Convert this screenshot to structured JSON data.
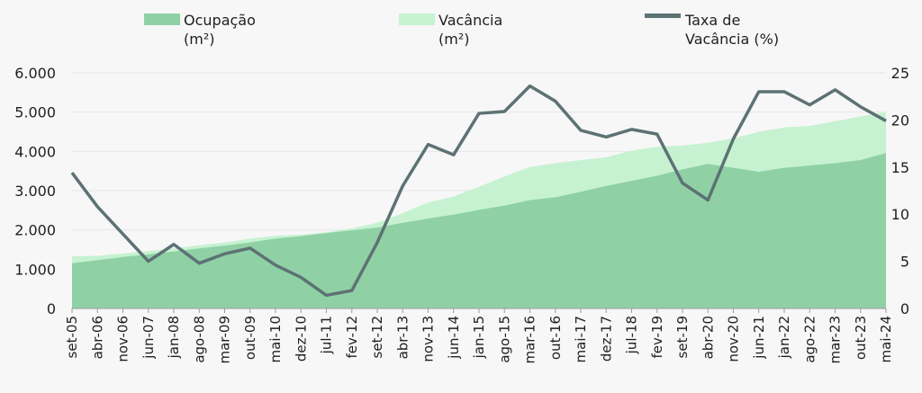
{
  "chart_data": {
    "type": "area",
    "categories": [
      "set-05",
      "abr-06",
      "nov-06",
      "jun-07",
      "jan-08",
      "ago-08",
      "mar-09",
      "out-09",
      "mai-10",
      "dez-10",
      "jul-11",
      "fev-12",
      "set-12",
      "abr-13",
      "nov-13",
      "jun-14",
      "jan-15",
      "ago-15",
      "mar-16",
      "out-16",
      "mai-17",
      "dez-17",
      "jul-18",
      "fev-19",
      "set-19",
      "abr-20",
      "nov-20",
      "jun-21",
      "jan-22",
      "ago-22",
      "mar-23",
      "out-23",
      "mai-24"
    ],
    "series": [
      {
        "name": "Ocupação (m²)",
        "kind": "area",
        "axis": "left",
        "color": "#8fd1a5",
        "values": [
          1150,
          1230,
          1310,
          1380,
          1450,
          1530,
          1600,
          1680,
          1780,
          1840,
          1920,
          1990,
          2060,
          2180,
          2290,
          2390,
          2510,
          2620,
          2760,
          2830,
          2970,
          3120,
          3250,
          3380,
          3540,
          3680,
          3580,
          3480,
          3580,
          3640,
          3700,
          3780,
          3960
        ]
      },
      {
        "name": "Vacância (m²)",
        "kind": "stacked-area",
        "axis": "left",
        "color": "#c6f2d2",
        "values": [
          1330,
          1340,
          1400,
          1460,
          1530,
          1610,
          1680,
          1780,
          1850,
          1880,
          1940,
          2040,
          2180,
          2430,
          2700,
          2850,
          3100,
          3360,
          3600,
          3700,
          3780,
          3850,
          4020,
          4120,
          4150,
          4220,
          4330,
          4500,
          4610,
          4650,
          4770,
          4890,
          5000
        ]
      },
      {
        "name": "Taxa de Vacância (%)",
        "kind": "line",
        "axis": "right",
        "color": "#5d7274",
        "values": [
          14.4,
          10.8,
          7.9,
          5.0,
          6.8,
          4.8,
          5.8,
          6.4,
          4.6,
          3.3,
          1.4,
          1.9,
          7.0,
          13.0,
          17.4,
          16.3,
          20.7,
          20.9,
          23.6,
          22.0,
          18.9,
          18.2,
          19.0,
          18.5,
          13.3,
          11.5,
          18.0,
          23.0,
          23.0,
          21.6,
          23.2,
          21.4,
          19.9
        ]
      }
    ],
    "y_left": {
      "min": 0,
      "max": 6000,
      "ticks": [
        "0",
        "1.000",
        "2.000",
        "3.000",
        "4.000",
        "5.000",
        "6.000"
      ]
    },
    "y_right": {
      "min": 0,
      "max": 25,
      "ticks": [
        "0",
        "5",
        "10",
        "15",
        "20",
        "25"
      ]
    },
    "grid": true,
    "legend": "top",
    "legend_labels": [
      {
        "series": 0,
        "lines": [
          "Ocupação",
          "(m²)"
        ]
      },
      {
        "series": 1,
        "lines": [
          "Vacância",
          "(m²)"
        ]
      },
      {
        "series": 2,
        "lines": [
          "Taxa de",
          "Vacância (%)"
        ]
      }
    ]
  }
}
